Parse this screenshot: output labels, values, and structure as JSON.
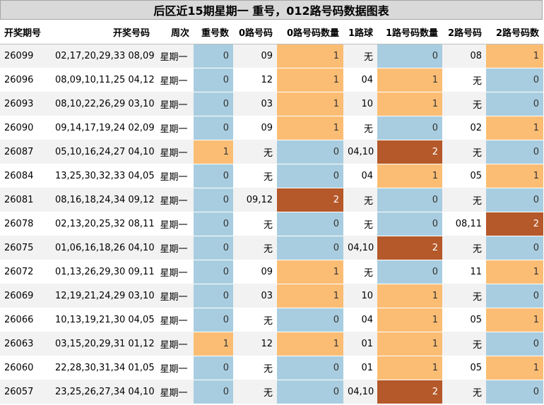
{
  "title": "后区近15期星期一  重号，012路号码数据图表",
  "headers": [
    "开奖期号",
    "开奖号码",
    "周次",
    "重号数",
    "0路号码",
    "0路号码数量",
    "1路球",
    "1路号码数量",
    "2路号码",
    "2路号码数"
  ],
  "colors": {
    "count_0": "#a9cde0",
    "count_1": "#fbbd74",
    "count_2": "#b5582a",
    "title_bg": "#d9d9d9",
    "row_alt": "#f2f2f2"
  },
  "rows": [
    {
      "issue": "26099",
      "numbers": "02,17,20,29,33 08,09",
      "weekday": "星期一",
      "repeat": "0",
      "r0": "09",
      "r0n": "1",
      "r1": "无",
      "r1n": "0",
      "r2": "08",
      "r2n": "1"
    },
    {
      "issue": "26096",
      "numbers": "08,09,10,11,25 04,12",
      "weekday": "星期一",
      "repeat": "0",
      "r0": "12",
      "r0n": "1",
      "r1": "04",
      "r1n": "1",
      "r2": "无",
      "r2n": "0"
    },
    {
      "issue": "26093",
      "numbers": "08,10,22,26,29 03,10",
      "weekday": "星期一",
      "repeat": "0",
      "r0": "03",
      "r0n": "1",
      "r1": "10",
      "r1n": "1",
      "r2": "无",
      "r2n": "0"
    },
    {
      "issue": "26090",
      "numbers": "09,14,17,19,24 02,09",
      "weekday": "星期一",
      "repeat": "0",
      "r0": "09",
      "r0n": "1",
      "r1": "无",
      "r1n": "0",
      "r2": "02",
      "r2n": "1"
    },
    {
      "issue": "26087",
      "numbers": "05,10,16,24,27 04,10",
      "weekday": "星期一",
      "repeat": "1",
      "r0": "无",
      "r0n": "0",
      "r1": "04,10",
      "r1n": "2",
      "r2": "无",
      "r2n": "0"
    },
    {
      "issue": "26084",
      "numbers": "13,25,30,32,33 04,05",
      "weekday": "星期一",
      "repeat": "0",
      "r0": "无",
      "r0n": "0",
      "r1": "04",
      "r1n": "1",
      "r2": "05",
      "r2n": "1"
    },
    {
      "issue": "26081",
      "numbers": "08,16,18,24,34 09,12",
      "weekday": "星期一",
      "repeat": "0",
      "r0": "09,12",
      "r0n": "2",
      "r1": "无",
      "r1n": "0",
      "r2": "无",
      "r2n": "0"
    },
    {
      "issue": "26078",
      "numbers": "02,13,20,25,32 08,11",
      "weekday": "星期一",
      "repeat": "0",
      "r0": "无",
      "r0n": "0",
      "r1": "无",
      "r1n": "0",
      "r2": "08,11",
      "r2n": "2"
    },
    {
      "issue": "26075",
      "numbers": "01,06,16,18,26 04,10",
      "weekday": "星期一",
      "repeat": "0",
      "r0": "无",
      "r0n": "0",
      "r1": "04,10",
      "r1n": "2",
      "r2": "无",
      "r2n": "0"
    },
    {
      "issue": "26072",
      "numbers": "01,13,26,29,30 09,11",
      "weekday": "星期一",
      "repeat": "0",
      "r0": "09",
      "r0n": "1",
      "r1": "无",
      "r1n": "0",
      "r2": "11",
      "r2n": "1"
    },
    {
      "issue": "26069",
      "numbers": "12,19,21,24,29 03,10",
      "weekday": "星期一",
      "repeat": "0",
      "r0": "03",
      "r0n": "1",
      "r1": "10",
      "r1n": "1",
      "r2": "无",
      "r2n": "0"
    },
    {
      "issue": "26066",
      "numbers": "10,13,19,21,30 04,05",
      "weekday": "星期一",
      "repeat": "0",
      "r0": "无",
      "r0n": "0",
      "r1": "04",
      "r1n": "1",
      "r2": "05",
      "r2n": "1"
    },
    {
      "issue": "26063",
      "numbers": "03,15,20,29,31 01,12",
      "weekday": "星期一",
      "repeat": "1",
      "r0": "12",
      "r0n": "1",
      "r1": "01",
      "r1n": "1",
      "r2": "无",
      "r2n": "0"
    },
    {
      "issue": "26060",
      "numbers": "22,28,30,31,34 01,05",
      "weekday": "星期一",
      "repeat": "0",
      "r0": "无",
      "r0n": "0",
      "r1": "01",
      "r1n": "1",
      "r2": "05",
      "r2n": "1"
    },
    {
      "issue": "26057",
      "numbers": "23,25,26,27,34 04,10",
      "weekday": "星期一",
      "repeat": "0",
      "r0": "无",
      "r0n": "0",
      "r1": "04,10",
      "r1n": "2",
      "r2": "无",
      "r2n": "0"
    }
  ]
}
